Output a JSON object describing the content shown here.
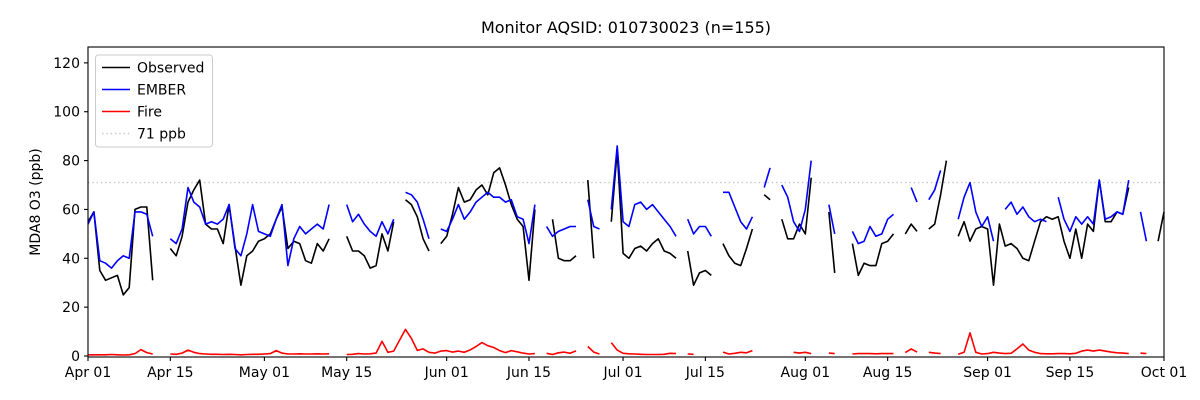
{
  "chart_data": {
    "type": "line",
    "title": "Monitor AQSID: 010730023 (n=155)",
    "ylabel": "MDA8 O3 (ppb)",
    "xlabel": "",
    "ylim": [
      0,
      126.5
    ],
    "yticks": [
      0,
      20,
      40,
      60,
      80,
      100,
      120
    ],
    "x_ticks": [
      {
        "day": 0,
        "label": "Apr 01"
      },
      {
        "day": 14,
        "label": "Apr 15"
      },
      {
        "day": 30,
        "label": "May 01"
      },
      {
        "day": 44,
        "label": "May 15"
      },
      {
        "day": 61,
        "label": "Jun 01"
      },
      {
        "day": 75,
        "label": "Jun 15"
      },
      {
        "day": 91,
        "label": "Jul 01"
      },
      {
        "day": 105,
        "label": "Jul 15"
      },
      {
        "day": 122,
        "label": "Aug 01"
      },
      {
        "day": 136,
        "label": "Aug 15"
      },
      {
        "day": 153,
        "label": "Sep 01"
      },
      {
        "day": 167,
        "label": "Sep 15"
      },
      {
        "day": 183,
        "label": "Oct 01"
      }
    ],
    "x_range_days": 184,
    "grid": false,
    "legend_position": "upper-left",
    "threshold": {
      "value": 71,
      "label": "71 ppb",
      "color": "#c9c9c9",
      "style": "dotted"
    },
    "series": [
      {
        "name": "Observed",
        "color": "#000000",
        "values": [
          55,
          59,
          35,
          31,
          32,
          33,
          25,
          28,
          60,
          61,
          61,
          31,
          null,
          null,
          44,
          41,
          49,
          63,
          68,
          72,
          54,
          52,
          52,
          46,
          62,
          45,
          29,
          41,
          43,
          47,
          48,
          50,
          56,
          61,
          44,
          47,
          46,
          39,
          38,
          46,
          43,
          48,
          null,
          null,
          49,
          43,
          43,
          41,
          36,
          37,
          50,
          43,
          55,
          null,
          64,
          62,
          57,
          48,
          43,
          null,
          46,
          49,
          58,
          69,
          63,
          64,
          68,
          70,
          66,
          75,
          77,
          70,
          62,
          56,
          53,
          31,
          60,
          null,
          null,
          56,
          40,
          39,
          39,
          41,
          null,
          72,
          40,
          null,
          null,
          55,
          84,
          42,
          40,
          44,
          45,
          43,
          46,
          48,
          43,
          42,
          40,
          null,
          43,
          29,
          34,
          35,
          33,
          null,
          46,
          41,
          38,
          37,
          44,
          52,
          null,
          66,
          64,
          null,
          56,
          48,
          48,
          54,
          50,
          73,
          null,
          null,
          59,
          34,
          null,
          null,
          46,
          33,
          38,
          37,
          37,
          46,
          47,
          50,
          null,
          50,
          54,
          51,
          null,
          52,
          54,
          66,
          80,
          null,
          49,
          55,
          47,
          52,
          53,
          52,
          29,
          54,
          45,
          46,
          44,
          40,
          39,
          47,
          55,
          57,
          56,
          57,
          47,
          40,
          52,
          40,
          54,
          51,
          72,
          55,
          55,
          59,
          58,
          69,
          null,
          null,
          null,
          null,
          47,
          59
        ]
      },
      {
        "name": "EMBER",
        "color": "#0000ff",
        "values": [
          54,
          59,
          39,
          38,
          36,
          39,
          41,
          40,
          59,
          59,
          58,
          49,
          null,
          null,
          48,
          46,
          52,
          69,
          63,
          61,
          54,
          55,
          54,
          56,
          62,
          44,
          41,
          50,
          62,
          51,
          50,
          49,
          56,
          62,
          37,
          48,
          53,
          50,
          52,
          54,
          52,
          62,
          null,
          null,
          62,
          55,
          58,
          54,
          51,
          49,
          55,
          50,
          56,
          null,
          67,
          66,
          63,
          56,
          48,
          null,
          52,
          51,
          56,
          62,
          56,
          59,
          63,
          65,
          67,
          65,
          65,
          63,
          64,
          57,
          56,
          46,
          62,
          null,
          53,
          49,
          51,
          52,
          53,
          53,
          null,
          64,
          53,
          52,
          null,
          60,
          86,
          55,
          53,
          62,
          63,
          60,
          62,
          59,
          56,
          53,
          49,
          null,
          56,
          50,
          53,
          53,
          49,
          null,
          67,
          67,
          61,
          55,
          52,
          57,
          null,
          69,
          77,
          null,
          70,
          65,
          55,
          51,
          60,
          80,
          null,
          null,
          62,
          50,
          null,
          null,
          51,
          46,
          47,
          53,
          49,
          50,
          56,
          58,
          null,
          null,
          69,
          63,
          null,
          64,
          68,
          76,
          null,
          null,
          56,
          65,
          71,
          59,
          53,
          57,
          47,
          null,
          60,
          63,
          58,
          61,
          57,
          55,
          56,
          55,
          null,
          65,
          56,
          51,
          57,
          54,
          57,
          54,
          72,
          56,
          57,
          59,
          58,
          72,
          null,
          59,
          47,
          null,
          null,
          null
        ]
      },
      {
        "name": "Fire",
        "color": "#ff0000",
        "values": [
          0.5,
          0.5,
          0.5,
          0.5,
          0.6,
          0.5,
          0.4,
          0.5,
          1.0,
          2.6,
          1.4,
          0.8,
          null,
          null,
          0.8,
          0.7,
          1.2,
          2.4,
          1.5,
          1.0,
          0.8,
          0.7,
          0.7,
          0.6,
          0.7,
          0.6,
          0.5,
          0.6,
          0.7,
          0.7,
          0.8,
          1.0,
          2.2,
          1.2,
          0.8,
          0.8,
          0.9,
          0.8,
          0.8,
          0.9,
          0.8,
          0.9,
          null,
          null,
          0.6,
          0.7,
          1.0,
          0.8,
          0.9,
          1.2,
          6.0,
          1.5,
          2.0,
          6.5,
          10.9,
          7.2,
          2.3,
          2.9,
          1.5,
          1.2,
          2.0,
          2.2,
          1.6,
          2.0,
          1.5,
          2.5,
          3.9,
          5.5,
          4.2,
          3.5,
          2.2,
          1.4,
          2.2,
          1.7,
          1.2,
          0.8,
          1.0,
          null,
          1.1,
          0.6,
          1.3,
          1.6,
          1.1,
          2.1,
          null,
          3.9,
          1.6,
          0.8,
          null,
          5.5,
          2.4,
          1.1,
          0.9,
          0.8,
          0.7,
          0.6,
          0.6,
          0.6,
          0.7,
          1.1,
          1.0,
          null,
          0.8,
          0.7,
          null,
          null,
          null,
          null,
          1.6,
          0.8,
          1.1,
          1.5,
          1.3,
          2.2,
          null,
          null,
          2.9,
          null,
          1.5,
          null,
          1.5,
          1.2,
          1.5,
          1.0,
          null,
          null,
          1.2,
          1.0,
          null,
          null,
          0.8,
          1.0,
          1.0,
          1.0,
          0.9,
          1.0,
          1.0,
          1.0,
          null,
          1.4,
          2.9,
          1.6,
          null,
          1.5,
          1.2,
          1.0,
          null,
          null,
          0.7,
          1.5,
          9.5,
          1.5,
          0.8,
          1.0,
          1.5,
          1.2,
          1.0,
          1.1,
          2.9,
          4.9,
          2.4,
          1.5,
          1.0,
          0.9,
          0.9,
          1.0,
          1.0,
          0.9,
          1.1,
          2.0,
          2.4,
          2.0,
          2.4,
          2.0,
          1.6,
          1.3,
          1.2,
          1.0,
          null,
          1.2,
          1.0,
          null,
          1.0,
          null
        ]
      }
    ]
  }
}
